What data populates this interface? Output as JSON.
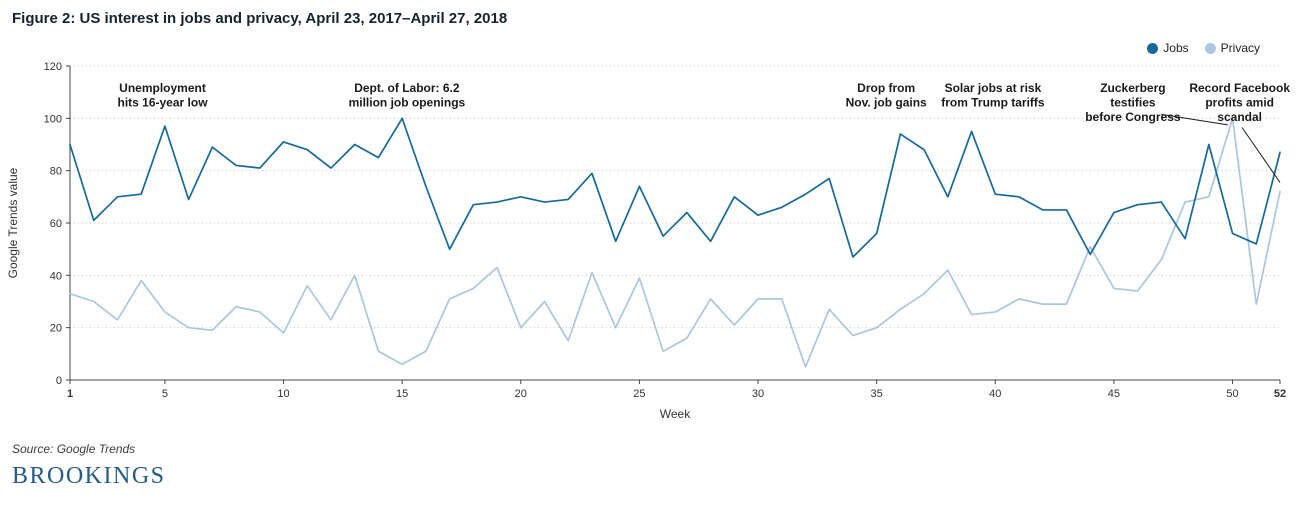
{
  "chart_data": {
    "type": "line",
    "title": "Figure 2: US interest in jobs and privacy, April 23, 2017–April 27, 2018",
    "xlabel": "Week",
    "ylabel": "Google Trends value",
    "xlim": [
      1,
      52
    ],
    "ylim": [
      0,
      120
    ],
    "x_ticks": [
      1,
      5,
      10,
      15,
      20,
      25,
      30,
      35,
      40,
      45,
      50,
      52
    ],
    "y_ticks": [
      0,
      20,
      40,
      60,
      80,
      100,
      120
    ],
    "grid": "horizontal dotted",
    "legend_position": "top-right",
    "x": [
      1,
      2,
      3,
      4,
      5,
      6,
      7,
      8,
      9,
      10,
      11,
      12,
      13,
      14,
      15,
      16,
      17,
      18,
      19,
      20,
      21,
      22,
      23,
      24,
      25,
      26,
      27,
      28,
      29,
      30,
      31,
      32,
      33,
      34,
      35,
      36,
      37,
      38,
      39,
      40,
      41,
      42,
      43,
      44,
      45,
      46,
      47,
      48,
      49,
      50,
      51,
      52
    ],
    "series": [
      {
        "name": "Jobs",
        "color": "#17699c",
        "values": [
          90,
          61,
          70,
          71,
          97,
          69,
          89,
          82,
          81,
          91,
          88,
          81,
          90,
          85,
          100,
          74,
          50,
          67,
          68,
          70,
          68,
          69,
          79,
          53,
          74,
          55,
          64,
          53,
          70,
          63,
          66,
          71,
          77,
          47,
          56,
          94,
          88,
          70,
          95,
          71,
          70,
          65,
          65,
          48,
          64,
          67,
          68,
          54,
          90,
          56,
          52,
          87
        ]
      },
      {
        "name": "Privacy",
        "color": "#aac7e2",
        "values": [
          33,
          30,
          23,
          38,
          26,
          20,
          19,
          28,
          26,
          18,
          36,
          23,
          40,
          11,
          6,
          11,
          31,
          35,
          43,
          20,
          30,
          15,
          41,
          20,
          39,
          11,
          16,
          31,
          21,
          31,
          31,
          5,
          27,
          17,
          20,
          27,
          33,
          42,
          25,
          26,
          31,
          29,
          29,
          51,
          35,
          34,
          46,
          68,
          70,
          100,
          29,
          72
        ]
      }
    ],
    "annotations": [
      {
        "lines": [
          "Unemployment",
          "hits 16-year low"
        ],
        "week": 4.9,
        "value": 110
      },
      {
        "lines": [
          "Dept. of Labor: 6.2",
          "million job openings"
        ],
        "week": 15.2,
        "value": 110
      },
      {
        "lines": [
          "Drop from",
          "Nov. job gains"
        ],
        "week": 35.4,
        "value": 110
      },
      {
        "lines": [
          "Solar jobs at risk",
          "from Trump tariffs"
        ],
        "week": 39.9,
        "value": 110
      },
      {
        "lines": [
          "Zuckerberg",
          "testifies",
          "before Congress"
        ],
        "week": 45.8,
        "value": 110
      },
      {
        "lines": [
          "Record Facebook",
          "profits amid",
          "scandal"
        ],
        "week": 50.3,
        "value": 110
      }
    ],
    "connectors": [
      {
        "from": {
          "week": 47.0,
          "value": 101.5
        },
        "to": {
          "week": 49.8,
          "value": 97.5
        }
      },
      {
        "from": {
          "week": 50.4,
          "value": 96.5
        },
        "to": {
          "week": 52,
          "value": 75.5
        }
      }
    ]
  },
  "footer": {
    "source": "Source: Google Trends",
    "brand": "BROOKINGS",
    "brand_color": "#255b85"
  }
}
